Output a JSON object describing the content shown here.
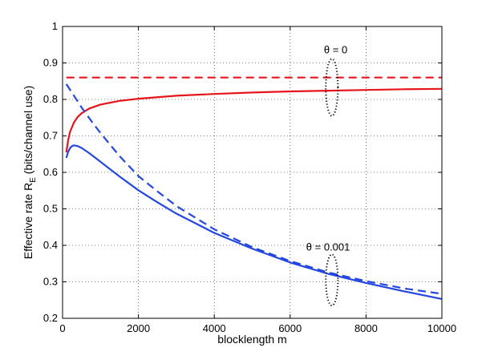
{
  "chart_data": {
    "type": "line",
    "title": "",
    "xlabel": "blocklength m",
    "ylabel_main": "Effective rate R",
    "ylabel_sub": "E",
    "ylabel_tail": " (bits/channel use)",
    "xlim": [
      0,
      10000
    ],
    "ylim": [
      0.2,
      1.0
    ],
    "xticks": [
      0,
      2000,
      4000,
      6000,
      8000,
      10000
    ],
    "xtick_labels": [
      "0",
      "2000",
      "4000",
      "6000",
      "8000",
      "10000"
    ],
    "yticks": [
      0.2,
      0.3,
      0.4,
      0.5,
      0.6,
      0.7,
      0.8,
      0.9,
      1.0
    ],
    "ytick_labels": [
      "0.2",
      "0.3",
      "0.4",
      "0.5",
      "0.6",
      "0.7",
      "0.8",
      "0.9",
      "1"
    ],
    "grid": true,
    "series": [
      {
        "color": "#e8141b",
        "dash": "dashed",
        "x": [
          100,
          10000
        ],
        "y": [
          0.86,
          0.86
        ]
      },
      {
        "color": "#e8141b",
        "dash": "solid",
        "x": [
          100,
          150,
          200,
          300,
          400,
          500,
          700,
          1000,
          1500,
          2000,
          3000,
          4000,
          5000,
          6000,
          7000,
          8000,
          9000,
          10000
        ],
        "y": [
          0.655,
          0.69,
          0.712,
          0.737,
          0.752,
          0.762,
          0.775,
          0.786,
          0.796,
          0.802,
          0.81,
          0.815,
          0.819,
          0.822,
          0.824,
          0.826,
          0.828,
          0.829
        ]
      },
      {
        "color": "#2447e0",
        "dash": "dashed",
        "x": [
          100,
          300,
          500,
          800,
          1000,
          1500,
          2000,
          2500,
          3000,
          4000,
          5000,
          6000,
          7000,
          8000,
          9000,
          10000
        ],
        "y": [
          0.842,
          0.81,
          0.778,
          0.735,
          0.708,
          0.645,
          0.59,
          0.548,
          0.508,
          0.444,
          0.395,
          0.357,
          0.326,
          0.302,
          0.282,
          0.267
        ]
      },
      {
        "color": "#2447e0",
        "dash": "solid",
        "x": [
          100,
          150,
          200,
          250,
          300,
          400,
          500,
          700,
          1000,
          1500,
          2000,
          2500,
          3000,
          4000,
          5000,
          6000,
          7000,
          8000,
          9000,
          10000
        ],
        "y": [
          0.64,
          0.657,
          0.667,
          0.672,
          0.674,
          0.672,
          0.667,
          0.653,
          0.629,
          0.589,
          0.551,
          0.518,
          0.487,
          0.434,
          0.391,
          0.353,
          0.322,
          0.297,
          0.274,
          0.253
        ]
      }
    ],
    "annotations": [
      {
        "text": "θ = 0",
        "x": 7200,
        "y": 0.935
      },
      {
        "text": "θ = 0.001",
        "x": 7000,
        "y": 0.395
      }
    ],
    "ellipses": [
      {
        "cx": 7100,
        "cy": 0.833,
        "rx": 160,
        "ry": 0.078
      },
      {
        "cx": 7100,
        "cy": 0.305,
        "rx": 160,
        "ry": 0.07
      }
    ]
  }
}
